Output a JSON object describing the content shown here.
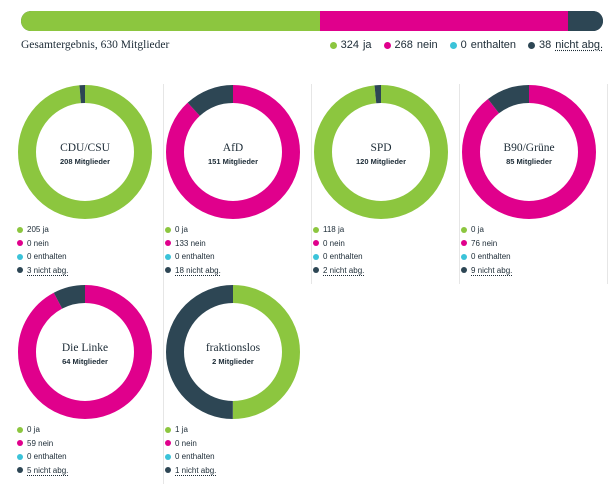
{
  "colors": {
    "ja": "#8cc63f",
    "nein": "#e0008c",
    "enthalten": "#3bc3d9",
    "nicht_abg": "#2d4654"
  },
  "summary": {
    "title": "Gesamtergebnis, 630 Mitglieder",
    "members": 630,
    "legend": [
      {
        "key": "ja",
        "count": "324",
        "label": "ja"
      },
      {
        "key": "nein",
        "count": "268",
        "label": "nein"
      },
      {
        "key": "enthalten",
        "count": "0",
        "label": "enthalten"
      },
      {
        "key": "nicht_abg",
        "count": "38",
        "label": "nicht abg."
      }
    ]
  },
  "chart_data": [
    {
      "type": "bar",
      "title": "Gesamtergebnis, 630 Mitglieder",
      "categories": [
        "ja",
        "nein",
        "enthalten",
        "nicht abg."
      ],
      "values": [
        324,
        268,
        0,
        38
      ]
    },
    {
      "type": "pie",
      "title": "CDU/CSU",
      "subtitle": "208 Mitglieder",
      "categories": [
        "ja",
        "nein",
        "enthalten",
        "nicht abg."
      ],
      "values": [
        205,
        0,
        0,
        3
      ],
      "labels": [
        "205 ja",
        "0 nein",
        "0 enthalten",
        "3 nicht abg."
      ]
    },
    {
      "type": "pie",
      "title": "AfD",
      "subtitle": "151 Mitglieder",
      "categories": [
        "ja",
        "nein",
        "enthalten",
        "nicht abg."
      ],
      "values": [
        0,
        133,
        0,
        18
      ],
      "labels": [
        "0 ja",
        "133 nein",
        "0 enthalten",
        "18 nicht abg."
      ]
    },
    {
      "type": "pie",
      "title": "SPD",
      "subtitle": "120 Mitglieder",
      "categories": [
        "ja",
        "nein",
        "enthalten",
        "nicht abg."
      ],
      "values": [
        118,
        0,
        0,
        2
      ],
      "labels": [
        "118 ja",
        "0 nein",
        "0 enthalten",
        "2 nicht abg."
      ]
    },
    {
      "type": "pie",
      "title": "B90/Grüne",
      "subtitle": "85 Mitglieder",
      "categories": [
        "ja",
        "nein",
        "enthalten",
        "nicht abg."
      ],
      "values": [
        0,
        76,
        0,
        9
      ],
      "labels": [
        "0 ja",
        "76 nein",
        "0 enthalten",
        "9 nicht abg."
      ]
    },
    {
      "type": "pie",
      "title": "Die Linke",
      "subtitle": "64 Mitglieder",
      "categories": [
        "ja",
        "nein",
        "enthalten",
        "nicht abg."
      ],
      "values": [
        0,
        59,
        0,
        5
      ],
      "labels": [
        "0 ja",
        "59 nein",
        "0 enthalten",
        "5 nicht abg."
      ]
    },
    {
      "type": "pie",
      "title": "fraktionslos",
      "subtitle": "2 Mitglieder",
      "categories": [
        "ja",
        "nein",
        "enthalten",
        "nicht abg."
      ],
      "values": [
        1,
        0,
        0,
        1
      ],
      "labels": [
        "1 ja",
        "0 nein",
        "0 enthalten",
        "1 nicht abg."
      ]
    }
  ]
}
